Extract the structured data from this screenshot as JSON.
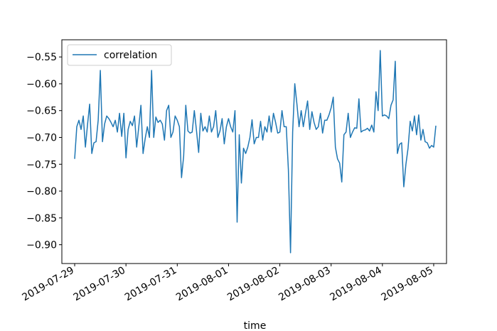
{
  "chart_data": {
    "type": "line",
    "xlabel": "time",
    "ylabel": "",
    "x_ticks": [
      "2019-07-29",
      "2019-07-30",
      "2019-07-31",
      "2019-08-01",
      "2019-08-02",
      "2019-08-03",
      "2019-08-04",
      "2019-08-05"
    ],
    "x_range": [
      "2019-07-28 18:00",
      "2019-08-05 06:00"
    ],
    "y_ticks": [
      "−0.55",
      "−0.60",
      "−0.65",
      "−0.70",
      "−0.75",
      "−0.80",
      "−0.85",
      "−0.90"
    ],
    "y_tick_values": [
      -0.55,
      -0.6,
      -0.65,
      -0.7,
      -0.75,
      -0.8,
      -0.85,
      -0.9
    ],
    "ylim": [
      -0.935,
      -0.518
    ],
    "grid": false,
    "legend_position": "top-left",
    "series": [
      {
        "name": "correlation",
        "color": "#1f77b4",
        "x_start": "2019-07-29 00:00",
        "x_step_hours": 1,
        "values": [
          -0.74,
          -0.68,
          -0.668,
          -0.685,
          -0.66,
          -0.718,
          -0.676,
          -0.638,
          -0.73,
          -0.71,
          -0.708,
          -0.668,
          -0.575,
          -0.708,
          -0.675,
          -0.66,
          -0.665,
          -0.672,
          -0.68,
          -0.668,
          -0.69,
          -0.655,
          -0.698,
          -0.655,
          -0.738,
          -0.685,
          -0.67,
          -0.678,
          -0.66,
          -0.718,
          -0.68,
          -0.64,
          -0.73,
          -0.702,
          -0.68,
          -0.7,
          -0.575,
          -0.7,
          -0.662,
          -0.672,
          -0.668,
          -0.675,
          -0.705,
          -0.65,
          -0.64,
          -0.7,
          -0.69,
          -0.66,
          -0.668,
          -0.68,
          -0.775,
          -0.735,
          -0.64,
          -0.688,
          -0.692,
          -0.69,
          -0.65,
          -0.688,
          -0.728,
          -0.655,
          -0.688,
          -0.68,
          -0.69,
          -0.66,
          -0.69,
          -0.68,
          -0.65,
          -0.7,
          -0.688,
          -0.665,
          -0.712,
          -0.68,
          -0.665,
          -0.68,
          -0.69,
          -0.65,
          -0.858,
          -0.695,
          -0.785,
          -0.72,
          -0.73,
          -0.718,
          -0.7,
          -0.667,
          -0.712,
          -0.7,
          -0.7,
          -0.67,
          -0.705,
          -0.68,
          -0.69,
          -0.66,
          -0.69,
          -0.655,
          -0.672,
          -0.692,
          -0.69,
          -0.65,
          -0.68,
          -0.68,
          -0.76,
          -0.915,
          -0.69,
          -0.6,
          -0.638,
          -0.68,
          -0.65,
          -0.68,
          -0.655,
          -0.632,
          -0.685,
          -0.652,
          -0.672,
          -0.685,
          -0.68,
          -0.655,
          -0.692,
          -0.668,
          -0.668,
          -0.658,
          -0.645,
          -0.625,
          -0.718,
          -0.74,
          -0.748,
          -0.783,
          -0.695,
          -0.69,
          -0.655,
          -0.7,
          -0.69,
          -0.682,
          -0.683,
          -0.628,
          -0.69,
          -0.687,
          -0.686,
          -0.683,
          -0.688,
          -0.677,
          -0.69,
          -0.615,
          -0.65,
          -0.538,
          -0.66,
          -0.658,
          -0.66,
          -0.665,
          -0.64,
          -0.63,
          -0.558,
          -0.73,
          -0.713,
          -0.71,
          -0.792,
          -0.75,
          -0.72,
          -0.67,
          -0.688,
          -0.66,
          -0.695,
          -0.658,
          -0.705,
          -0.685,
          -0.708,
          -0.71,
          -0.72,
          -0.715,
          -0.718,
          -0.678
        ]
      }
    ]
  }
}
